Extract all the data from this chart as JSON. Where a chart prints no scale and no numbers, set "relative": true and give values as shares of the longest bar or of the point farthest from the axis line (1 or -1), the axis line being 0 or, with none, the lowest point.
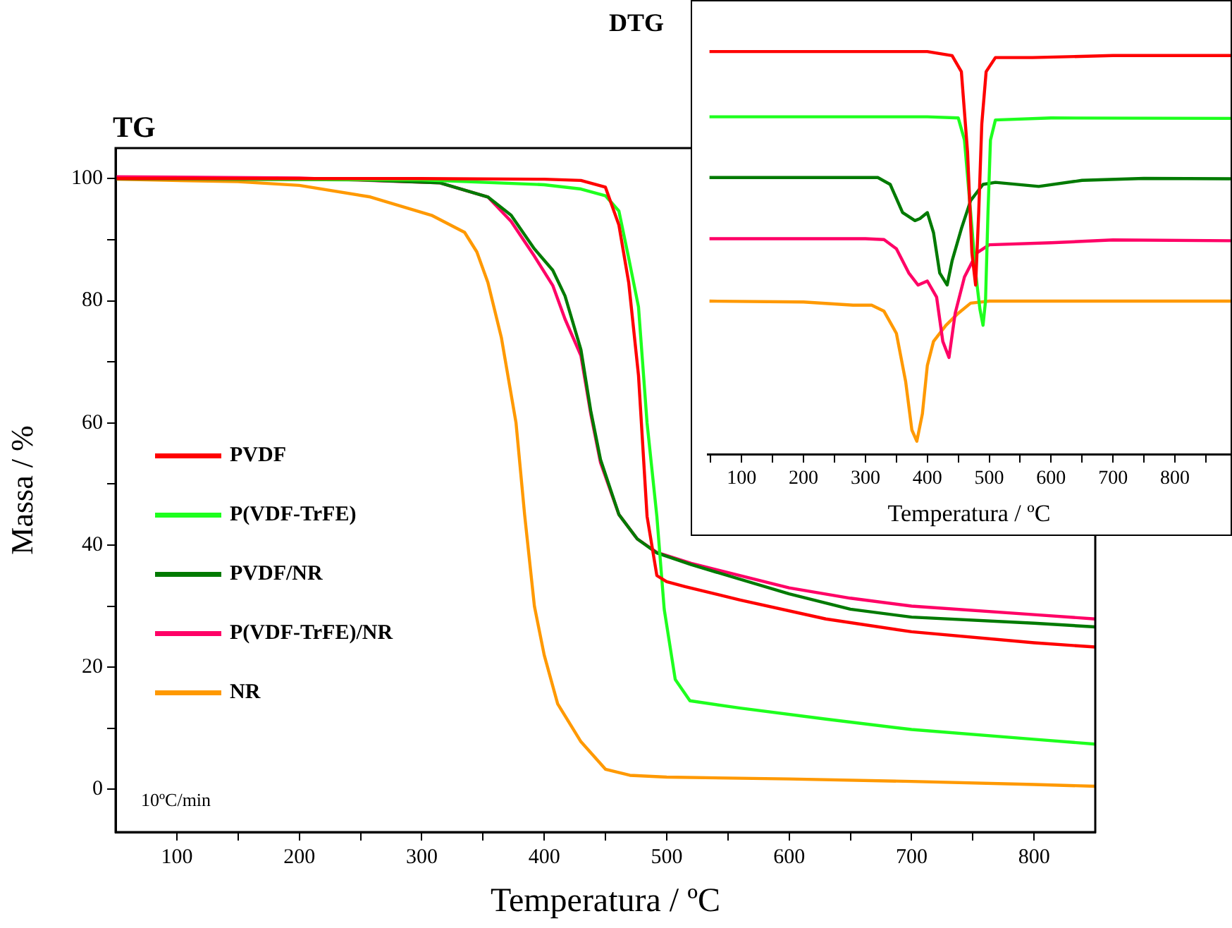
{
  "chart_data": [
    {
      "type": "line",
      "title": "TG",
      "xlabel": "Temperatura / ºC",
      "ylabel": "Massa / %",
      "xlim": [
        50,
        850
      ],
      "ylim": [
        -7,
        105
      ],
      "xticks": [
        100,
        {
          "value": 150,
          "label": null
        },
        200,
        {
          "value": 250,
          "label": null
        },
        300,
        {
          "value": 350,
          "label": null
        },
        400,
        {
          "value": 450,
          "label": null
        },
        500,
        {
          "value": 550,
          "label": null
        },
        600,
        {
          "value": 650,
          "label": null
        },
        700,
        {
          "value": 750,
          "label": null
        },
        800
      ],
      "yticks": [
        0,
        {
          "value": 10,
          "label": null
        },
        20,
        {
          "value": 30,
          "label": null
        },
        40,
        {
          "value": 50,
          "label": null
        },
        60,
        {
          "value": 70,
          "label": null
        },
        80,
        {
          "value": 90,
          "label": null
        },
        100
      ],
      "legend": "left",
      "marker": "none",
      "annotations": [
        "10ºC/min"
      ],
      "series": [
        {
          "name": "PVDF",
          "color": "#ff0000",
          "x": [
            50,
            300,
            400,
            430,
            450,
            461,
            469,
            477,
            484,
            492,
            500,
            515,
            560,
            630,
            700,
            800,
            850
          ],
          "values": [
            100,
            100,
            99.9,
            99.7,
            98.6,
            92.4,
            83,
            67.8,
            44.7,
            35,
            34,
            33.2,
            31,
            27.9,
            25.8,
            24,
            23.3
          ]
        },
        {
          "name": "P(VDF-TrFE)",
          "color": "#1eff1e",
          "x": [
            50,
            300,
            400,
            430,
            450,
            461,
            469,
            477,
            484,
            492,
            498,
            507,
            519,
            560,
            630,
            700,
            800,
            850
          ],
          "values": [
            100,
            99.8,
            99,
            98.3,
            97.2,
            94.7,
            87,
            79,
            60,
            44.7,
            29.5,
            18,
            14.5,
            13.3,
            11.5,
            9.8,
            8.2,
            7.4
          ]
        },
        {
          "name": "PVDF/NR",
          "color": "#007a00",
          "x": [
            50,
            250,
            315,
            354,
            373,
            392,
            407,
            417,
            430,
            438,
            446,
            461,
            476,
            492,
            520,
            600,
            650,
            700,
            800,
            850
          ],
          "values": [
            100,
            99.8,
            99.3,
            97,
            94,
            88.5,
            85,
            80.8,
            72,
            62,
            54,
            45,
            41,
            38.7,
            36.8,
            32,
            29.5,
            28.2,
            27.2,
            26.6
          ]
        },
        {
          "name": "P(VDF-TrFE)/NR",
          "color": "#ff0066",
          "x": [
            50,
            200,
            315,
            354,
            373,
            392,
            407,
            417,
            430,
            438,
            446,
            461,
            476,
            492,
            520,
            600,
            650,
            700,
            800,
            850
          ],
          "values": [
            100.3,
            100.1,
            99.3,
            97,
            93,
            87.3,
            82.5,
            77,
            71,
            61.5,
            53.5,
            45,
            41,
            38.8,
            37,
            33,
            31.3,
            30,
            28.6,
            27.9
          ]
        },
        {
          "name": "NR",
          "color": "#ff9900",
          "x": [
            50,
            150,
            200,
            258,
            308,
            335,
            345,
            354,
            365,
            377,
            384,
            392,
            400,
            411,
            430,
            450,
            470,
            500,
            600,
            700,
            800,
            850
          ],
          "values": [
            99.9,
            99.5,
            98.9,
            97,
            94,
            91.2,
            88,
            83,
            74,
            60,
            45,
            30,
            22,
            14,
            7.8,
            3.3,
            2.3,
            2,
            1.7,
            1.3,
            0.8,
            0.5
          ]
        }
      ]
    },
    {
      "type": "line",
      "title": "DTG",
      "xlabel": "Temperatura / ºC",
      "relative": true,
      "tick_labels": "x",
      "xlim": [
        45,
        890
      ],
      "marker": "none",
      "xticks": [
        {
          "value": 50,
          "label": null
        },
        100,
        {
          "value": 150,
          "label": null
        },
        200,
        {
          "value": 250,
          "label": null
        },
        300,
        {
          "value": 350,
          "label": null
        },
        400,
        {
          "value": 450,
          "label": null
        },
        500,
        {
          "value": 550,
          "label": null
        },
        600,
        {
          "value": 650,
          "label": null
        },
        700,
        {
          "value": 750,
          "label": null
        },
        800,
        {
          "value": 850,
          "label": null
        }
      ],
      "series": [
        {
          "color": "#ff0000",
          "x": [
            48,
            300,
            400,
            440,
            455,
            465,
            472,
            478,
            483,
            488,
            495,
            510,
            570,
            700,
            890
          ],
          "values": [
            1,
            1,
            1,
            0.99,
            0.95,
            0.75,
            0.5,
            0.42,
            0.6,
            0.82,
            0.95,
            0.985,
            0.985,
            0.99,
            0.99
          ]
        },
        {
          "color": "#1eff1e",
          "x": [
            48,
            400,
            450,
            460,
            470,
            478,
            485,
            490,
            494,
            498,
            502,
            510,
            600,
            890
          ],
          "values": [
            0.838,
            0.838,
            0.835,
            0.78,
            0.6,
            0.45,
            0.36,
            0.32,
            0.38,
            0.6,
            0.78,
            0.83,
            0.835,
            0.834
          ]
        },
        {
          "color": "#007a00",
          "x": [
            48,
            300,
            320,
            340,
            360,
            380,
            388,
            400,
            410,
            420,
            432,
            440,
            455,
            470,
            490,
            510,
            580,
            650,
            750,
            890
          ],
          "values": [
            0.687,
            0.687,
            0.687,
            0.67,
            0.6,
            0.58,
            0.585,
            0.6,
            0.55,
            0.45,
            0.42,
            0.48,
            0.56,
            0.63,
            0.67,
            0.675,
            0.665,
            0.68,
            0.685,
            0.684
          ]
        },
        {
          "color": "#ff0066",
          "x": [
            48,
            300,
            330,
            350,
            370,
            385,
            400,
            415,
            425,
            435,
            445,
            460,
            480,
            500,
            600,
            700,
            890
          ],
          "values": [
            0.535,
            0.535,
            0.533,
            0.51,
            0.45,
            0.42,
            0.43,
            0.39,
            0.28,
            0.24,
            0.35,
            0.44,
            0.5,
            0.52,
            0.525,
            0.532,
            0.53
          ]
        },
        {
          "color": "#ff9900",
          "x": [
            48,
            200,
            280,
            310,
            330,
            350,
            365,
            375,
            383,
            392,
            400,
            410,
            430,
            450,
            470,
            500,
            890
          ],
          "values": [
            0.38,
            0.378,
            0.37,
            0.37,
            0.355,
            0.3,
            0.18,
            0.06,
            0.032,
            0.1,
            0.22,
            0.28,
            0.32,
            0.35,
            0.375,
            0.38,
            0.38
          ]
        }
      ]
    }
  ]
}
